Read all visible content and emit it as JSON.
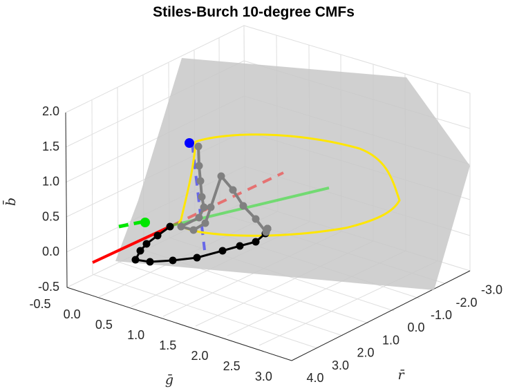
{
  "chart_data": {
    "type": "line3d",
    "title": "Stiles-Burch 10-degree CMFs",
    "xlabel": "r̄",
    "ylabel": "ḡ",
    "zlabel": "b̄",
    "xlim": [
      -3.0,
      4.0
    ],
    "ylim": [
      -0.5,
      3.0
    ],
    "zlim": [
      -0.5,
      2.0
    ],
    "x_ticks": [
      "4.0",
      "3.0",
      "2.0",
      "1.0",
      "0.0",
      "-1.0",
      "-2.0",
      "-3.0"
    ],
    "y_ticks": [
      "-0.5",
      "0.0",
      "0.5",
      "1.0",
      "1.5",
      "2.0",
      "2.5",
      "3.0"
    ],
    "z_ticks": [
      "-0.5",
      "0.0",
      "0.5",
      "1.0",
      "1.5",
      "2.0"
    ],
    "grid": true,
    "colors": {
      "plane": "#c8c8c8",
      "yellow_curve": "#ffe600",
      "black_curve": "#000000",
      "gray_curve": "#808080",
      "r_axis": "#ff0000",
      "g_axis": "#00e600",
      "b_axis": "#0000ff"
    },
    "series": [
      {
        "role": "spectral-locus-chromaticity",
        "color": "yellow",
        "points": [
          [
            -0.4,
            0.6,
            0.8
          ],
          [
            -1.3,
            1.5,
            0.8
          ],
          [
            -2.1,
            2.1,
            0.8
          ],
          [
            -2.3,
            1.9,
            0.8
          ],
          [
            -1.9,
            1.2,
            0.8
          ],
          [
            0.0,
            0.0,
            1.0
          ],
          [
            1.1,
            -0.1,
            0.0
          ],
          [
            1.4,
            -0.4,
            0.0
          ],
          [
            0.25,
            0.7,
            0.05
          ],
          [
            0.1,
            0.75,
            0.0
          ],
          [
            0.0,
            0.6,
            0.4
          ],
          [
            -0.3,
            0.3,
            1.0
          ]
        ]
      },
      {
        "role": "cmf-curve-floor-projection",
        "color": "black",
        "points": [
          [
            -0.1,
            0.15,
            0.0
          ],
          [
            -0.15,
            0.35,
            0.0
          ],
          [
            -0.15,
            0.55,
            0.0
          ],
          [
            -0.12,
            0.8,
            0.0
          ],
          [
            -0.07,
            1.05,
            0.0
          ],
          [
            0.05,
            1.3,
            0.0
          ],
          [
            0.3,
            1.45,
            0.0
          ],
          [
            0.7,
            1.4,
            0.0
          ],
          [
            1.2,
            1.2,
            0.0
          ],
          [
            1.7,
            0.9,
            0.0
          ],
          [
            2.0,
            0.6,
            0.0
          ],
          [
            1.8,
            0.35,
            0.0
          ],
          [
            1.3,
            0.17,
            0.0
          ],
          [
            0.85,
            0.06,
            0.0
          ],
          [
            0.5,
            0.0,
            0.0
          ]
        ]
      },
      {
        "role": "cmf-curve",
        "color": "gray",
        "points": [
          [
            0.0,
            0.05,
            1.5
          ],
          [
            -0.05,
            0.1,
            1.4
          ],
          [
            -0.08,
            0.2,
            1.1
          ],
          [
            -0.1,
            0.3,
            0.8
          ],
          [
            -0.12,
            0.5,
            0.5
          ],
          [
            -0.12,
            0.75,
            0.3
          ],
          [
            -0.07,
            1.0,
            0.1
          ],
          [
            0.05,
            1.2,
            0.1
          ],
          [
            0.35,
            1.3,
            0.3
          ],
          [
            0.75,
            1.3,
            0.6
          ],
          [
            1.25,
            1.05,
            0.75
          ],
          [
            1.7,
            0.85,
            0.7
          ],
          [
            2.0,
            0.55,
            0.55
          ],
          [
            1.95,
            0.35,
            0.35
          ],
          [
            1.6,
            0.2,
            0.2
          ],
          [
            1.2,
            0.1,
            0.1
          ]
        ]
      }
    ],
    "axes_lines": [
      {
        "name": "r-axis",
        "color": "red",
        "from": [
          3.0,
          0.0,
          0.0
        ],
        "to": [
          -3.0,
          0.0,
          0.0
        ]
      },
      {
        "name": "g-axis",
        "color": "green",
        "from": [
          0.0,
          0.0,
          0.0
        ],
        "to": [
          0.0,
          3.0,
          0.0
        ]
      },
      {
        "name": "b-axis",
        "color": "blue",
        "from": [
          0.0,
          0.0,
          0.0
        ],
        "to": [
          0.0,
          0.0,
          1.5
        ]
      }
    ],
    "primaries": [
      {
        "name": "blue-primary",
        "color": "blue",
        "point": [
          0.0,
          0.0,
          1.5
        ]
      },
      {
        "name": "green-primary",
        "color": "green",
        "point": [
          0.0,
          1.0,
          0.5
        ]
      }
    ]
  }
}
